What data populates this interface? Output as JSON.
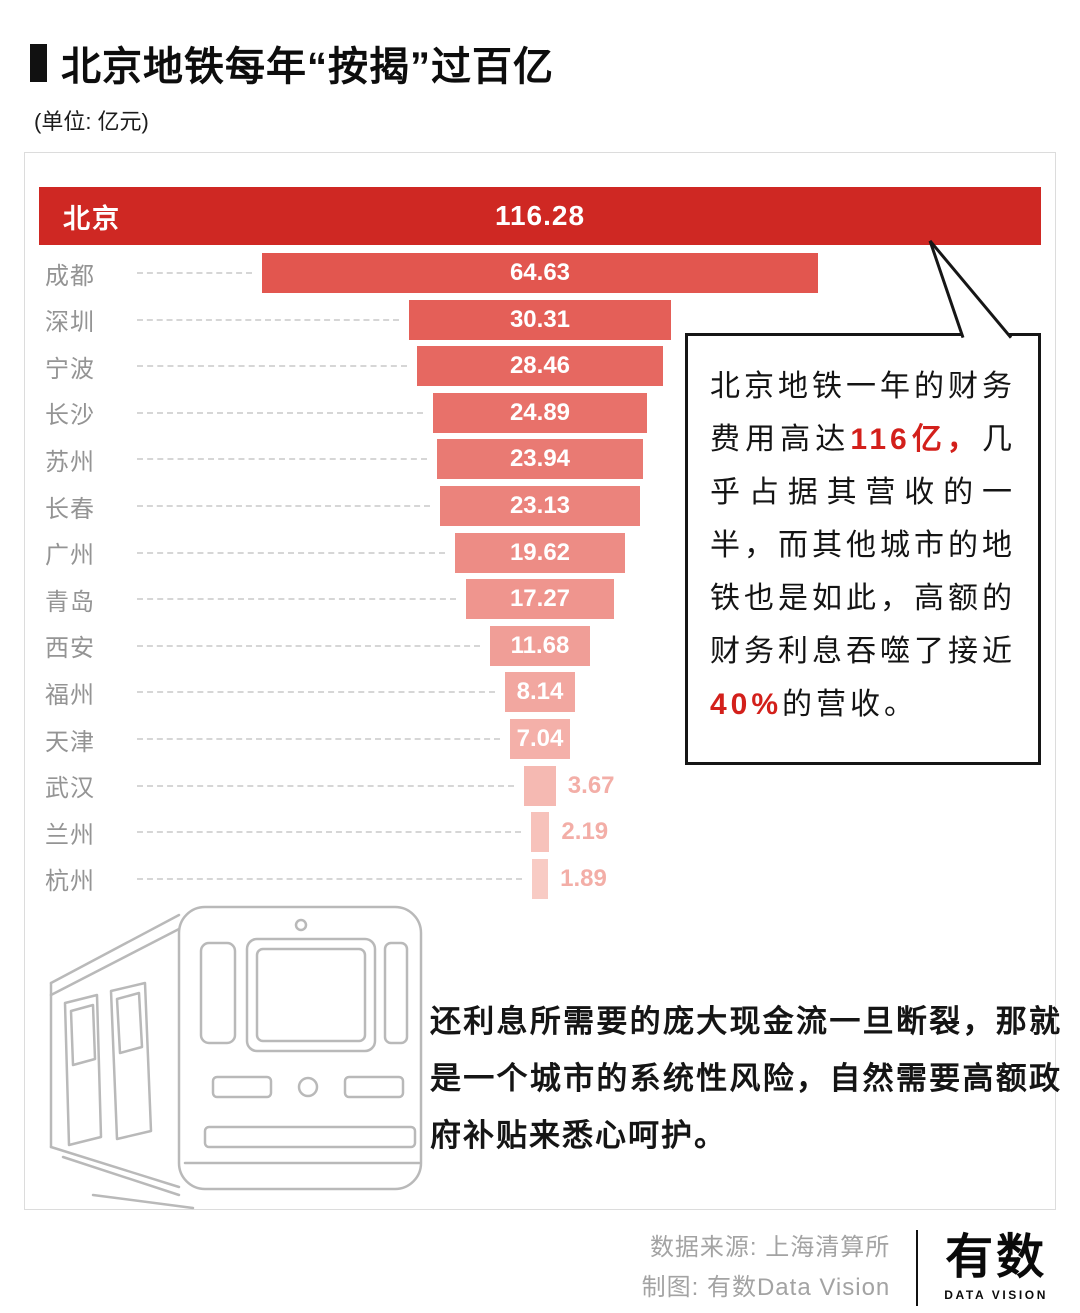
{
  "header": {
    "title": "北京地铁每年“按揭”过百亿",
    "unit": "(单位: 亿元)"
  },
  "chart_data": {
    "type": "bar",
    "orientation": "horizontal-centered-funnel",
    "title": "北京地铁每年“按揭”过百亿",
    "unit": "亿元",
    "xlim": [
      0,
      116.28
    ],
    "categories": [
      "北京",
      "成都",
      "深圳",
      "宁波",
      "长沙",
      "苏州",
      "长春",
      "广州",
      "青岛",
      "西安",
      "福州",
      "天津",
      "武汉",
      "兰州",
      "杭州"
    ],
    "values": [
      116.28,
      64.63,
      30.31,
      28.46,
      24.89,
      23.94,
      23.13,
      19.62,
      17.27,
      11.68,
      8.14,
      7.04,
      3.67,
      2.19,
      1.89
    ],
    "value_labels": [
      "116.28",
      "64.63",
      "30.31",
      "28.46",
      "24.89",
      "23.94",
      "23.13",
      "19.62",
      "17.27",
      "11.68",
      "8.14",
      "7.04",
      "3.67",
      "2.19",
      "1.89"
    ],
    "bar_colors": [
      "#cf2823",
      "#e2564f",
      "#e45f58",
      "#e66861",
      "#e8716a",
      "#e97a73",
      "#eb837c",
      "#ed8c85",
      "#ef958e",
      "#f09e97",
      "#f2a7a0",
      "#f4b0a9",
      "#f5b9b2",
      "#f7c2bb",
      "#f8cbc4"
    ],
    "outside_value_color": "#f3aea7",
    "grid": false,
    "legend": false
  },
  "callout": {
    "segments": [
      {
        "text": "北京地铁一年的财务费用高达",
        "highlight": false
      },
      {
        "text": "116亿，",
        "highlight": true
      },
      {
        "text": "几乎占据其营收的一半，而其他城市的地铁也是如此，高额的财务利息吞噬了接近",
        "highlight": false
      },
      {
        "text": "40%",
        "highlight": true
      },
      {
        "text": "的营收。",
        "highlight": false
      }
    ]
  },
  "commentary": "还利息所需要的庞大现金流一旦断裂，那就是一个城市的系统性风险，自然需要高额政府补贴来悉心呵护。",
  "footer": {
    "source": "数据来源: 上海清算所",
    "credit": "制图: 有数Data Vision",
    "logo_main": "有数",
    "logo_sub": "DATA VISION"
  },
  "colors": {
    "highlight_red": "#d3201b",
    "beijing_bar": "#cf2823",
    "label_gray": "#949494",
    "train_line": "#b9b9b9"
  }
}
